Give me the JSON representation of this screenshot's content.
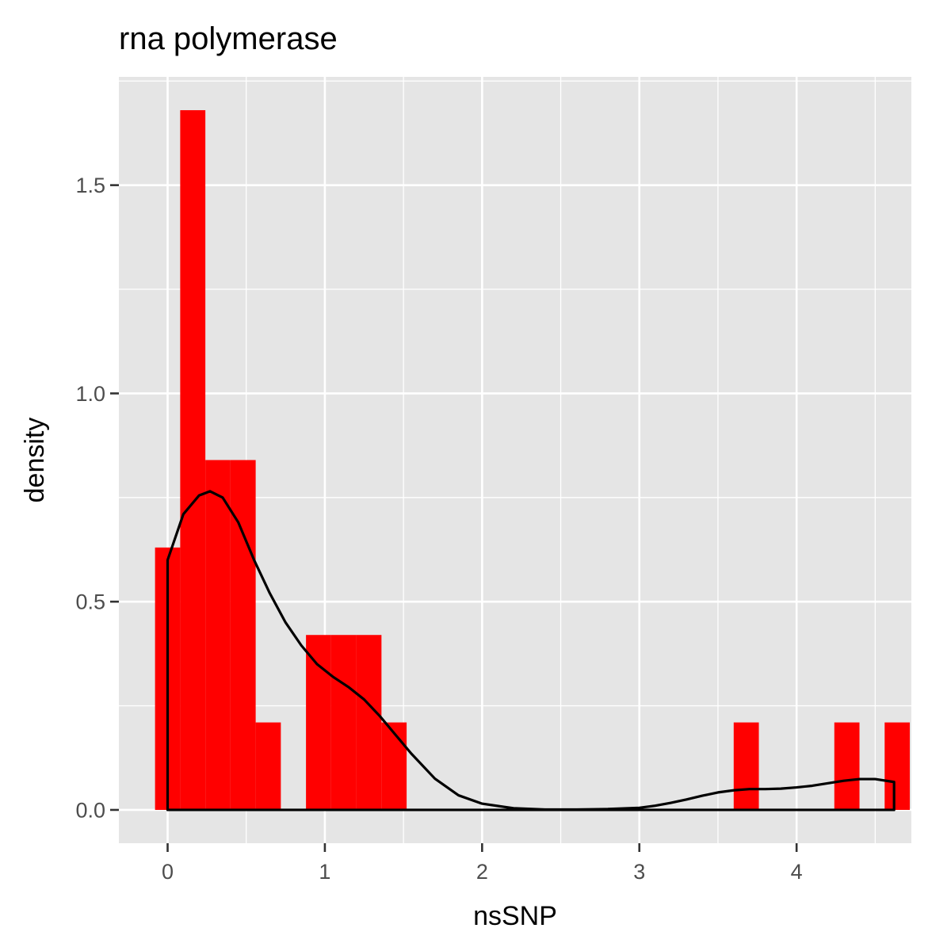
{
  "chart_data": {
    "type": "bar",
    "title": "rna polymerase",
    "xlabel": "nsSNP",
    "ylabel": "density",
    "xlim": [
      -0.31,
      4.73
    ],
    "ylim": [
      -0.08,
      1.76
    ],
    "x_ticks": [
      0,
      1,
      2,
      3,
      4
    ],
    "x_tick_labels": [
      "0",
      "1",
      "2",
      "3",
      "4"
    ],
    "y_ticks": [
      0.0,
      0.5,
      1.0,
      1.5
    ],
    "y_tick_labels": [
      "0.0",
      "0.5",
      "1.0",
      "1.5"
    ],
    "grid": true,
    "colors": {
      "bar_fill": "#ff0000",
      "density_line": "#000000",
      "panel_background": "#e5e5e5",
      "grid_line": "#ffffff"
    },
    "histogram": {
      "bin_width": 0.16,
      "bins": [
        {
          "x0": -0.08,
          "x1": 0.08,
          "density": 0.63
        },
        {
          "x0": 0.08,
          "x1": 0.24,
          "density": 1.68
        },
        {
          "x0": 0.24,
          "x1": 0.4,
          "density": 0.84
        },
        {
          "x0": 0.4,
          "x1": 0.56,
          "density": 0.84
        },
        {
          "x0": 0.56,
          "x1": 0.72,
          "density": 0.21
        },
        {
          "x0": 0.88,
          "x1": 1.04,
          "density": 0.42
        },
        {
          "x0": 1.04,
          "x1": 1.2,
          "density": 0.42
        },
        {
          "x0": 1.2,
          "x1": 1.36,
          "density": 0.42
        },
        {
          "x0": 1.36,
          "x1": 1.52,
          "density": 0.21
        },
        {
          "x0": 3.6,
          "x1": 3.76,
          "density": 0.21
        },
        {
          "x0": 4.24,
          "x1": 4.4,
          "density": 0.21
        },
        {
          "x0": 4.56,
          "x1": 4.72,
          "density": 0.21
        }
      ]
    },
    "density": {
      "x": [
        0,
        0.1,
        0.2,
        0.27,
        0.35,
        0.45,
        0.55,
        0.65,
        0.75,
        0.85,
        0.95,
        1.05,
        1.15,
        1.25,
        1.35,
        1.45,
        1.55,
        1.7,
        1.85,
        2.0,
        2.2,
        2.4,
        2.6,
        2.8,
        3.0,
        3.1,
        3.2,
        3.3,
        3.4,
        3.5,
        3.6,
        3.7,
        3.8,
        3.9,
        4.0,
        4.1,
        4.2,
        4.3,
        4.4,
        4.5,
        4.62
      ],
      "y": [
        0.6,
        0.71,
        0.755,
        0.765,
        0.75,
        0.69,
        0.6,
        0.52,
        0.45,
        0.395,
        0.35,
        0.32,
        0.295,
        0.265,
        0.225,
        0.18,
        0.135,
        0.075,
        0.035,
        0.015,
        0.004,
        0.001,
        0.001,
        0.002,
        0.005,
        0.01,
        0.017,
        0.025,
        0.034,
        0.042,
        0.047,
        0.05,
        0.05,
        0.051,
        0.054,
        0.058,
        0.064,
        0.07,
        0.074,
        0.074,
        0.067
      ]
    }
  }
}
